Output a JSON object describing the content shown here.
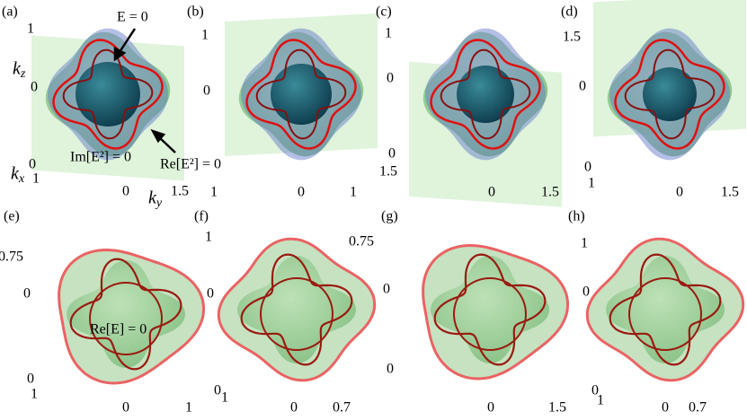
{
  "panels": [
    {
      "label": "(a)",
      "ticks": [
        "1",
        "0",
        "0",
        "1",
        "0",
        "1.5"
      ],
      "axes": [
        "k_z",
        "k_x",
        "k_y"
      ],
      "annotations": [
        "E = 0",
        "Im[E²] = 0",
        "Re[E²] = 0"
      ]
    },
    {
      "label": "(b)",
      "ticks": [
        "1",
        "0",
        "1",
        "0",
        "1"
      ]
    },
    {
      "label": "(c)",
      "ticks": [
        "1",
        "0",
        "0",
        "1.5",
        "0",
        "1.5"
      ]
    },
    {
      "label": "(d)",
      "ticks": [
        "1.5",
        "0",
        "0",
        "1",
        "0",
        "1.5"
      ]
    },
    {
      "label": "(e)",
      "ticks": [
        "0.75",
        "0",
        "0",
        "1",
        "0",
        "1"
      ],
      "annotations": [
        "Re[E] = 0"
      ]
    },
    {
      "label": "(f)",
      "ticks": [
        "1",
        "0",
        "0",
        "1",
        "0",
        "0.7"
      ]
    },
    {
      "label": "(g)",
      "ticks": [
        "0.75",
        "0",
        "0",
        "0",
        "1.5"
      ]
    },
    {
      "label": "(h)",
      "ticks": [
        "1",
        "0",
        "0",
        "1",
        "0",
        "0.7"
      ]
    }
  ]
}
